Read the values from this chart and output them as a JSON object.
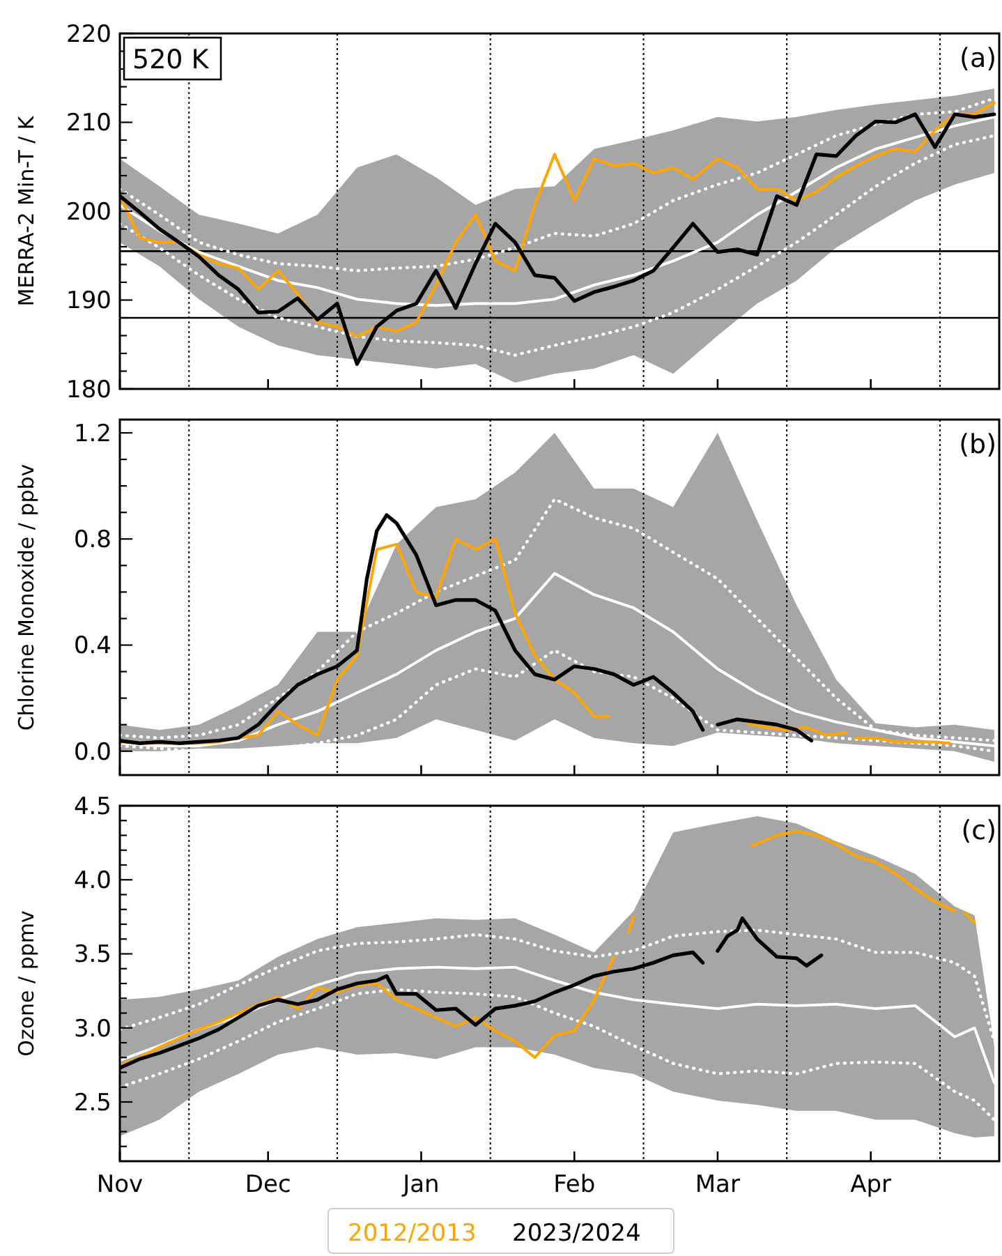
{
  "chart_data": [
    {
      "type": "line",
      "ylabel": "MERRA-2 Min-T / K",
      "annotations": [
        "520 K",
        "(a)"
      ],
      "tick_labels": "y",
      "x": [
        "2023-11-01",
        "2023-11-05",
        "2023-11-09",
        "2023-11-13",
        "2023-11-17",
        "2023-11-21",
        "2023-11-25",
        "2023-11-29",
        "2023-12-03",
        "2023-12-07",
        "2023-12-11",
        "2023-12-15",
        "2023-12-19",
        "2023-12-23",
        "2023-12-27",
        "2023-12-31",
        "2024-01-04",
        "2024-01-08",
        "2024-01-12",
        "2024-01-16",
        "2024-01-20",
        "2024-01-24",
        "2024-01-28",
        "2024-02-01",
        "2024-02-05",
        "2024-02-09",
        "2024-02-13",
        "2024-02-17",
        "2024-02-21",
        "2024-02-25",
        "2024-03-01",
        "2024-03-05",
        "2024-03-09",
        "2024-03-13",
        "2024-03-17",
        "2024-03-21",
        "2024-03-25",
        "2024-03-29",
        "2024-04-02",
        "2024-04-06",
        "2024-04-10",
        "2024-04-14",
        "2024-04-18",
        "2024-04-22",
        "2024-04-26"
      ],
      "xlim": [
        "2023-11-01",
        "2024-04-27"
      ],
      "xticks": [
        {
          "value": "2023-11-01",
          "label": null
        },
        {
          "value": "2023-12-01",
          "label": null
        },
        {
          "value": "2024-01-01",
          "label": null
        },
        {
          "value": "2024-02-01",
          "label": null
        },
        {
          "value": "2024-03-01",
          "label": null
        },
        {
          "value": "2024-04-01",
          "label": null
        }
      ],
      "ylim": [
        180,
        220
      ],
      "yticks": [
        180,
        {
          "value": 182,
          "label": null
        },
        {
          "value": 184,
          "label": null
        },
        {
          "value": 186,
          "label": null
        },
        {
          "value": 188,
          "label": null
        },
        190,
        {
          "value": 192,
          "label": null
        },
        {
          "value": 194,
          "label": null
        },
        {
          "value": 196,
          "label": null
        },
        {
          "value": 198,
          "label": null
        },
        200,
        {
          "value": 202,
          "label": null
        },
        {
          "value": 204,
          "label": null
        },
        {
          "value": 206,
          "label": null
        },
        {
          "value": 208,
          "label": null
        },
        210,
        {
          "value": 212,
          "label": null
        },
        {
          "value": 214,
          "label": null
        },
        {
          "value": 216,
          "label": null
        },
        {
          "value": 218,
          "label": null
        },
        220
      ],
      "ref_lines": [
        {
          "axis": "x",
          "value": "2023-11-15",
          "color": "#000000",
          "line_style": "dotted"
        },
        {
          "axis": "x",
          "value": "2023-12-15",
          "color": "#000000",
          "line_style": "dotted"
        },
        {
          "axis": "x",
          "value": "2024-01-15",
          "color": "#000000",
          "line_style": "dotted"
        },
        {
          "axis": "x",
          "value": "2024-02-15",
          "color": "#000000",
          "line_style": "dotted"
        },
        {
          "axis": "x",
          "value": "2024-03-15",
          "color": "#000000",
          "line_style": "dotted"
        },
        {
          "axis": "x",
          "value": "2024-04-15",
          "color": "#000000",
          "line_style": "dotted"
        },
        {
          "axis": "y",
          "value": 195.5,
          "color": "#000000",
          "line_style": "solid"
        },
        {
          "axis": "y",
          "value": 188,
          "color": "#000000",
          "line_style": "solid"
        }
      ],
      "series": [
        {
          "color": "#ffffff",
          "line_style": "solid",
          "x": [
            "2023-11-01",
            "2023-11-09",
            "2023-11-17",
            "2023-11-25",
            "2023-12-03",
            "2023-12-11",
            "2023-12-19",
            "2023-12-27",
            "2024-01-04",
            "2024-01-12",
            "2024-01-20",
            "2024-01-28",
            "2024-02-05",
            "2024-02-13",
            "2024-02-21",
            "2024-03-01",
            "2024-03-09",
            "2024-03-17",
            "2024-03-25",
            "2024-04-02",
            "2024-04-10",
            "2024-04-18",
            "2024-04-26"
          ],
          "values": [
            200.7,
            197.8,
            195.4,
            193.8,
            192.2,
            191.4,
            190.1,
            189.6,
            189.4,
            189.6,
            189.6,
            190.1,
            191.7,
            192.8,
            194.4,
            196.5,
            199.6,
            202.2,
            204.9,
            207,
            208.3,
            209.6,
            210.6
          ],
          "lower": [
            196.5,
            193.8,
            190.1,
            187,
            184.9,
            183.8,
            183.3,
            182.8,
            182.3,
            182.8,
            180.7,
            181.7,
            182.3,
            183.8,
            181.7,
            186,
            189.6,
            192.2,
            195.9,
            198.6,
            201.2,
            203,
            204.3
          ],
          "upper": [
            205.9,
            202.8,
            199.6,
            198.6,
            197.5,
            199.6,
            204.9,
            206.4,
            203.8,
            200.7,
            202.5,
            202.8,
            207,
            208,
            209.1,
            210.6,
            210.1,
            210.6,
            211.4,
            212,
            212.5,
            213,
            213.8
          ]
        },
        {
          "color": "#ffffff",
          "line_style": "dotted",
          "x": [
            "2023-11-01",
            "2023-11-09",
            "2023-11-17",
            "2023-11-25",
            "2023-12-03",
            "2023-12-11",
            "2023-12-19",
            "2023-12-27",
            "2024-01-04",
            "2024-01-12",
            "2024-01-20",
            "2024-01-28",
            "2024-02-05",
            "2024-02-13",
            "2024-02-21",
            "2024-03-01",
            "2024-03-09",
            "2024-03-17",
            "2024-03-25",
            "2024-04-02",
            "2024-04-10",
            "2024-04-18",
            "2024-04-26"
          ],
          "values": [
            202.5,
            199.6,
            196.5,
            195.1,
            194.1,
            193.8,
            193.3,
            193.6,
            193.8,
            194.6,
            195.9,
            197.5,
            197.2,
            198.6,
            201.2,
            203,
            204.3,
            206.4,
            208.5,
            209.8,
            210.9,
            211.2,
            212.7
          ]
        },
        {
          "color": "#ffffff",
          "line_style": "dotted",
          "x": [
            "2023-11-01",
            "2023-11-09",
            "2023-11-17",
            "2023-11-25",
            "2023-12-03",
            "2023-12-11",
            "2023-12-19",
            "2023-12-27",
            "2024-01-04",
            "2024-01-12",
            "2024-01-20",
            "2024-01-28",
            "2024-02-05",
            "2024-02-13",
            "2024-02-21",
            "2024-03-01",
            "2024-03-09",
            "2024-03-17",
            "2024-03-25",
            "2024-04-02",
            "2024-04-10",
            "2024-04-18",
            "2024-04-26"
          ],
          "values": [
            198.6,
            195.9,
            192.8,
            190.1,
            188,
            187,
            185.9,
            185.4,
            185.2,
            184.9,
            183.8,
            184.9,
            185.9,
            187,
            188.6,
            191.2,
            193.8,
            196.5,
            199.6,
            202.8,
            205.4,
            207.5,
            208.5
          ]
        },
        {
          "color": "#ffa500",
          "line_style": "solid",
          "values": [
            201.7,
            197,
            196.5,
            196.5,
            195.1,
            194.1,
            193.6,
            191.2,
            193.3,
            190.7,
            187.5,
            187,
            185.9,
            187,
            186.5,
            187.5,
            191.7,
            196.5,
            199.6,
            194.4,
            193.3,
            200.7,
            206.4,
            201.2,
            205.9,
            205.1,
            205.4,
            204.3,
            204.9,
            203.6,
            205.9,
            204.9,
            202.5,
            202.5,
            201.2,
            202.2,
            203.8,
            205.1,
            206.2,
            207,
            206.7,
            209.1,
            210.9,
            210.9,
            212.2
          ]
        },
        {
          "color": "#000000",
          "line_style": "solid",
          "values": [
            201.7,
            199.9,
            198,
            196.5,
            194.9,
            192.8,
            191.2,
            188.6,
            188.7,
            190.2,
            187.8,
            189.6,
            182.8,
            187,
            188.8,
            189.6,
            193.3,
            189.1,
            194.1,
            198.6,
            196.5,
            192.8,
            192.5,
            189.9,
            190.9,
            191.5,
            192.2,
            193.3,
            195.9,
            198.6,
            195.4,
            195.7,
            195.1,
            201.7,
            200.7,
            206.4,
            206.2,
            208.5,
            210.1,
            210,
            210.9,
            207.2,
            210.9,
            210.6,
            210.9
          ]
        }
      ]
    },
    {
      "type": "line",
      "ylabel": "Chlorine Monoxide / ppbv",
      "annotations": [
        "(b)"
      ],
      "tick_labels": "y",
      "xlim": [
        "2023-11-01",
        "2024-04-27"
      ],
      "xticks": [
        {
          "value": "2023-11-01",
          "label": null
        },
        {
          "value": "2023-12-01",
          "label": null
        },
        {
          "value": "2024-01-01",
          "label": null
        },
        {
          "value": "2024-02-01",
          "label": null
        },
        {
          "value": "2024-03-01",
          "label": null
        },
        {
          "value": "2024-04-01",
          "label": null
        }
      ],
      "ylim": [
        -0.09,
        1.25
      ],
      "yticks": [
        {
          "value": 0,
          "label": "0.0"
        },
        {
          "value": 0.1,
          "label": null
        },
        {
          "value": 0.2,
          "label": null
        },
        {
          "value": 0.3,
          "label": null
        },
        0.4,
        {
          "value": 0.5,
          "label": null
        },
        {
          "value": 0.6,
          "label": null
        },
        {
          "value": 0.7,
          "label": null
        },
        0.8,
        {
          "value": 0.9,
          "label": null
        },
        {
          "value": 1.0,
          "label": null
        },
        {
          "value": 1.1,
          "label": null
        },
        1.2
      ],
      "ref_lines": [
        {
          "axis": "x",
          "value": "2023-11-15",
          "color": "#000000",
          "line_style": "dotted"
        },
        {
          "axis": "x",
          "value": "2023-12-15",
          "color": "#000000",
          "line_style": "dotted"
        },
        {
          "axis": "x",
          "value": "2024-01-15",
          "color": "#000000",
          "line_style": "dotted"
        },
        {
          "axis": "x",
          "value": "2024-02-15",
          "color": "#000000",
          "line_style": "dotted"
        },
        {
          "axis": "x",
          "value": "2024-03-15",
          "color": "#000000",
          "line_style": "dotted"
        },
        {
          "axis": "x",
          "value": "2024-04-15",
          "color": "#000000",
          "line_style": "dotted"
        }
      ],
      "series": [
        {
          "color": "#ffffff",
          "line_style": "solid",
          "x": [
            "2023-11-01",
            "2023-11-09",
            "2023-11-17",
            "2023-11-25",
            "2023-12-03",
            "2023-12-11",
            "2023-12-19",
            "2023-12-27",
            "2024-01-04",
            "2024-01-12",
            "2024-01-20",
            "2024-01-28",
            "2024-02-05",
            "2024-02-13",
            "2024-02-21",
            "2024-03-01",
            "2024-03-09",
            "2024-03-17",
            "2024-03-25",
            "2024-04-02",
            "2024-04-10",
            "2024-04-18",
            "2024-04-26"
          ],
          "values": [
            0.03,
            0.02,
            0.02,
            0.04,
            0.1,
            0.15,
            0.22,
            0.29,
            0.38,
            0.45,
            0.5,
            0.67,
            0.59,
            0.54,
            0.45,
            0.31,
            0.22,
            0.15,
            0.11,
            0.08,
            0.05,
            0.035,
            0.02
          ],
          "lower": [
            0,
            0,
            0.01,
            0.01,
            0.02,
            0.03,
            0.03,
            0.05,
            0.12,
            0.08,
            0.04,
            0.12,
            0.05,
            0.03,
            0.02,
            0.07,
            0.06,
            0.05,
            0.03,
            0.02,
            0.01,
            0,
            -0.04
          ],
          "upper": [
            0.1,
            0.08,
            0.1,
            0.17,
            0.25,
            0.45,
            0.45,
            0.78,
            0.92,
            0.95,
            1.05,
            1.2,
            0.99,
            0.99,
            0.92,
            1.2,
            0.87,
            0.55,
            0.27,
            0.105,
            0.09,
            0.1,
            0.08
          ]
        },
        {
          "color": "#ffffff",
          "line_style": "dotted",
          "x": [
            "2023-11-01",
            "2023-11-09",
            "2023-11-17",
            "2023-11-25",
            "2023-12-03",
            "2023-12-11",
            "2023-12-19",
            "2023-12-27",
            "2024-01-04",
            "2024-01-12",
            "2024-01-20",
            "2024-01-28",
            "2024-02-05",
            "2024-02-13",
            "2024-02-21",
            "2024-03-01",
            "2024-03-09",
            "2024-03-17",
            "2024-03-25",
            "2024-04-02",
            "2024-04-10",
            "2024-04-18",
            "2024-04-26"
          ],
          "values": [
            0.06,
            0.05,
            0.06,
            0.1,
            0.2,
            0.3,
            0.45,
            0.52,
            0.6,
            0.66,
            0.72,
            0.95,
            0.88,
            0.84,
            0.75,
            0.65,
            0.5,
            0.35,
            0.2,
            0.08,
            0.06,
            0.05,
            0.04
          ]
        },
        {
          "color": "#ffffff",
          "line_style": "dotted",
          "x": [
            "2023-11-01",
            "2023-11-09",
            "2023-11-17",
            "2023-11-25",
            "2023-12-03",
            "2023-12-11",
            "2023-12-19",
            "2023-12-27",
            "2024-01-04",
            "2024-01-12",
            "2024-01-20",
            "2024-01-28",
            "2024-02-05",
            "2024-02-13",
            "2024-02-21",
            "2024-03-01",
            "2024-03-09",
            "2024-03-17",
            "2024-03-25",
            "2024-04-02",
            "2024-04-10",
            "2024-04-18",
            "2024-04-26"
          ],
          "values": [
            0.02,
            0.01,
            0,
            0,
            0.01,
            0.03,
            0.06,
            0.12,
            0.25,
            0.31,
            0.28,
            0.38,
            0.3,
            0.28,
            0.2,
            0.08,
            0.07,
            0.06,
            0.05,
            0.04,
            0.03,
            0.02,
            0
          ]
        },
        {
          "color": "#ffa500",
          "line_style": "solid",
          "x": [
            "2023-11-01",
            "2023-11-05",
            "2023-11-09",
            "2023-11-13",
            "2023-11-17",
            "2023-11-21",
            "2023-11-25",
            "2023-11-29",
            "2023-12-03",
            "2023-12-07",
            "2023-12-11",
            "2023-12-15",
            "2023-12-19",
            "2023-12-23",
            "2023-12-27",
            "2023-12-31",
            "2024-01-04",
            "2024-01-08",
            "2024-01-12",
            "2024-01-16",
            "2024-01-20",
            "2024-01-24",
            "2024-01-28",
            "2024-02-01",
            "2024-02-05",
            "2024-02-08",
            "2024-02-19",
            "2024-03-07",
            "2024-03-11",
            "2024-03-15",
            "2024-03-19",
            "2024-03-23",
            "2024-03-27",
            "2024-03-28",
            "2024-03-29",
            "2024-04-02",
            "2024-04-06",
            "2024-04-10",
            "2024-04-14",
            "2024-04-17"
          ],
          "values": [
            0.035,
            0.03,
            0.03,
            0.03,
            0.03,
            0.035,
            0.05,
            0.06,
            0.15,
            0.1,
            0.06,
            0.27,
            0.36,
            0.76,
            0.78,
            0.6,
            0.58,
            0.8,
            0.76,
            0.8,
            0.52,
            0.36,
            0.27,
            0.22,
            0.13,
            0.13,
            null,
            0.105,
            0.09,
            0.08,
            0.09,
            0.06,
            0.07,
            null,
            0.05,
            0.05,
            0.035,
            0.035,
            0.035,
            0.03
          ]
        },
        {
          "color": "#000000",
          "line_style": "solid",
          "x": [
            "2023-11-01",
            "2023-11-05",
            "2023-11-09",
            "2023-11-13",
            "2023-11-17",
            "2023-11-21",
            "2023-11-25",
            "2023-11-29",
            "2023-12-03",
            "2023-12-07",
            "2023-12-11",
            "2023-12-15",
            "2023-12-19",
            "2023-12-21",
            "2023-12-23",
            "2023-12-25",
            "2023-12-27",
            "2023-12-31",
            "2024-01-04",
            "2024-01-08",
            "2024-01-12",
            "2024-01-16",
            "2024-01-20",
            "2024-01-24",
            "2024-01-28",
            "2024-02-01",
            "2024-02-05",
            "2024-02-09",
            "2024-02-13",
            "2024-02-17",
            "2024-02-21",
            "2024-02-25",
            "2024-02-27",
            "2024-02-28",
            "2024-03-01",
            "2024-03-05",
            "2024-03-09",
            "2024-03-13",
            "2024-03-17",
            "2024-03-20"
          ],
          "values": [
            0.04,
            0.03,
            0.035,
            0.03,
            0.035,
            0.04,
            0.05,
            0.1,
            0.18,
            0.25,
            0.29,
            0.32,
            0.38,
            0.65,
            0.83,
            0.89,
            0.86,
            0.74,
            0.55,
            0.57,
            0.57,
            0.53,
            0.38,
            0.29,
            0.27,
            0.32,
            0.31,
            0.29,
            0.25,
            0.28,
            0.22,
            0.15,
            0.08,
            null,
            0.1,
            0.12,
            0.11,
            0.1,
            0.08,
            0.04
          ]
        }
      ]
    },
    {
      "type": "line",
      "ylabel": "Ozone / ppmv",
      "annotations": [
        "(c)"
      ],
      "legend": "bottom",
      "xlim": [
        "2023-11-01",
        "2024-04-27"
      ],
      "xticks": [
        {
          "value": "2023-11-01",
          "label": "Nov"
        },
        {
          "value": "2023-12-01",
          "label": "Dec"
        },
        {
          "value": "2024-01-01",
          "label": "Jan"
        },
        {
          "value": "2024-02-01",
          "label": "Feb"
        },
        {
          "value": "2024-03-01",
          "label": "Mar"
        },
        {
          "value": "2024-04-01",
          "label": "Apr"
        }
      ],
      "ylim": [
        2.1,
        4.5
      ],
      "yticks": [
        {
          "value": 2.2,
          "label": null
        },
        {
          "value": 2.3,
          "label": null
        },
        {
          "value": 2.4,
          "label": null
        },
        2.5,
        {
          "value": 2.6,
          "label": null
        },
        {
          "value": 2.7,
          "label": null
        },
        {
          "value": 2.8,
          "label": null
        },
        {
          "value": 2.9,
          "label": null
        },
        {
          "value": 3,
          "label": "3.0"
        },
        {
          "value": 3.1,
          "label": null
        },
        {
          "value": 3.2,
          "label": null
        },
        {
          "value": 3.3,
          "label": null
        },
        {
          "value": 3.4,
          "label": null
        },
        3.5,
        {
          "value": 3.6,
          "label": null
        },
        {
          "value": 3.7,
          "label": null
        },
        {
          "value": 3.8,
          "label": null
        },
        {
          "value": 3.9,
          "label": null
        },
        {
          "value": 4,
          "label": "4.0"
        },
        {
          "value": 4.1,
          "label": null
        },
        {
          "value": 4.2,
          "label": null
        },
        {
          "value": 4.3,
          "label": null
        },
        {
          "value": 4.4,
          "label": null
        },
        4.5
      ],
      "ref_lines": [
        {
          "axis": "x",
          "value": "2023-11-15",
          "color": "#000000",
          "line_style": "dotted"
        },
        {
          "axis": "x",
          "value": "2023-12-15",
          "color": "#000000",
          "line_style": "dotted"
        },
        {
          "axis": "x",
          "value": "2024-01-15",
          "color": "#000000",
          "line_style": "dotted"
        },
        {
          "axis": "x",
          "value": "2024-02-15",
          "color": "#000000",
          "line_style": "dotted"
        },
        {
          "axis": "x",
          "value": "2024-03-15",
          "color": "#000000",
          "line_style": "dotted"
        },
        {
          "axis": "x",
          "value": "2024-04-15",
          "color": "#000000",
          "line_style": "dotted"
        }
      ],
      "series": [
        {
          "color": "#ffffff",
          "line_style": "solid",
          "x": [
            "2023-11-01",
            "2023-11-09",
            "2023-11-17",
            "2023-11-25",
            "2023-12-03",
            "2023-12-11",
            "2023-12-19",
            "2023-12-27",
            "2024-01-04",
            "2024-01-12",
            "2024-01-20",
            "2024-01-28",
            "2024-02-05",
            "2024-02-13",
            "2024-02-21",
            "2024-03-01",
            "2024-03-09",
            "2024-03-17",
            "2024-03-25",
            "2024-04-02",
            "2024-04-10",
            "2024-04-18",
            "2024-04-22",
            "2024-04-26"
          ],
          "values": [
            2.78,
            2.88,
            2.99,
            3.08,
            3.19,
            3.29,
            3.37,
            3.4,
            3.41,
            3.4,
            3.41,
            3.32,
            3.24,
            3.19,
            3.16,
            3.13,
            3.16,
            3.15,
            3.16,
            3.13,
            3.15,
            2.94,
            3.0,
            2.63
          ],
          "lower": [
            2.27,
            2.38,
            2.57,
            2.69,
            2.82,
            2.87,
            2.82,
            2.83,
            2.79,
            2.87,
            2.87,
            2.82,
            2.73,
            2.69,
            2.57,
            2.51,
            2.48,
            2.44,
            2.44,
            2.38,
            2.38,
            2.29,
            2.26,
            2.27
          ],
          "upper": [
            3.19,
            3.21,
            3.26,
            3.32,
            3.48,
            3.6,
            3.68,
            3.71,
            3.74,
            3.73,
            3.74,
            3.63,
            3.51,
            3.79,
            4.32,
            4.38,
            4.43,
            4.38,
            4.26,
            4.16,
            4.04,
            3.82,
            3.76,
            2.88
          ]
        },
        {
          "color": "#ffffff",
          "line_style": "dotted",
          "x": [
            "2023-11-01",
            "2023-11-09",
            "2023-11-17",
            "2023-11-25",
            "2023-12-03",
            "2023-12-11",
            "2023-12-19",
            "2023-12-27",
            "2024-01-04",
            "2024-01-12",
            "2024-01-20",
            "2024-01-28",
            "2024-02-05",
            "2024-02-13",
            "2024-02-21",
            "2024-03-01",
            "2024-03-09",
            "2024-03-17",
            "2024-03-25",
            "2024-04-02",
            "2024-04-10",
            "2024-04-18",
            "2024-04-22",
            "2024-04-26"
          ],
          "values": [
            2.99,
            3.07,
            3.16,
            3.29,
            3.41,
            3.52,
            3.57,
            3.58,
            3.6,
            3.63,
            3.6,
            3.52,
            3.48,
            3.52,
            3.62,
            3.65,
            3.66,
            3.63,
            3.6,
            3.51,
            3.51,
            3.44,
            3.35,
            2.91
          ]
        },
        {
          "color": "#ffffff",
          "line_style": "dotted",
          "x": [
            "2023-11-01",
            "2023-11-09",
            "2023-11-17",
            "2023-11-25",
            "2023-12-03",
            "2023-12-11",
            "2023-12-19",
            "2023-12-27",
            "2024-01-04",
            "2024-01-12",
            "2024-01-20",
            "2024-01-28",
            "2024-02-05",
            "2024-02-13",
            "2024-02-21",
            "2024-03-01",
            "2024-03-09",
            "2024-03-17",
            "2024-03-25",
            "2024-04-02",
            "2024-04-10",
            "2024-04-18",
            "2024-04-22",
            "2024-04-26"
          ],
          "values": [
            2.6,
            2.69,
            2.79,
            2.91,
            3.04,
            3.13,
            3.23,
            3.26,
            3.24,
            3.23,
            3.21,
            3.1,
            3.01,
            2.88,
            2.76,
            2.69,
            2.71,
            2.69,
            2.76,
            2.77,
            2.76,
            2.57,
            2.51,
            2.38
          ]
        },
        {
          "name": "2012/2013",
          "color": "#ffa500",
          "line_style": "solid",
          "x": [
            "2023-11-01",
            "2023-11-05",
            "2023-11-09",
            "2023-11-13",
            "2023-11-17",
            "2023-11-21",
            "2023-11-25",
            "2023-11-29",
            "2023-12-03",
            "2023-12-07",
            "2023-12-11",
            "2023-12-15",
            "2023-12-19",
            "2023-12-23",
            "2023-12-27",
            "2023-12-31",
            "2024-01-04",
            "2024-01-08",
            "2024-01-12",
            "2024-01-16",
            "2024-01-20",
            "2024-01-24",
            "2024-01-28",
            "2024-02-01",
            "2024-02-05",
            "2024-02-09",
            "2024-02-10",
            "2024-02-12",
            "2024-02-13",
            "2024-02-14",
            "2024-03-08",
            "2024-03-13",
            "2024-03-17",
            "2024-03-21",
            "2024-03-25",
            "2024-03-29",
            "2024-04-02",
            "2024-04-06",
            "2024-04-10",
            "2024-04-14",
            "2024-04-18",
            "2024-04-19",
            "2024-04-20",
            "2024-04-22"
          ],
          "values": [
            2.75,
            2.8,
            2.87,
            2.93,
            2.99,
            3.04,
            3.1,
            3.16,
            3.21,
            3.13,
            3.27,
            3.24,
            3.29,
            3.3,
            3.19,
            3.13,
            3.07,
            3.01,
            3.07,
            2.98,
            2.91,
            2.8,
            2.95,
            2.98,
            3.19,
            3.48,
            null,
            3.65,
            3.75,
            null,
            4.23,
            4.3,
            4.33,
            4.3,
            4.24,
            4.16,
            4.12,
            4.04,
            3.94,
            3.85,
            3.79,
            null,
            3.78,
            3.71
          ]
        },
        {
          "name": "2023/2024",
          "color": "#000000",
          "line_style": "solid",
          "x": [
            "2023-11-01",
            "2023-11-05",
            "2023-11-09",
            "2023-11-13",
            "2023-11-17",
            "2023-11-21",
            "2023-11-25",
            "2023-11-29",
            "2023-12-03",
            "2023-12-07",
            "2023-12-11",
            "2023-12-15",
            "2023-12-19",
            "2023-12-23",
            "2023-12-25",
            "2023-12-27",
            "2023-12-31",
            "2024-01-04",
            "2024-01-08",
            "2024-01-12",
            "2024-01-16",
            "2024-01-20",
            "2024-01-24",
            "2024-01-28",
            "2024-02-01",
            "2024-02-05",
            "2024-02-09",
            "2024-02-13",
            "2024-02-17",
            "2024-02-21",
            "2024-02-25",
            "2024-02-27",
            "2024-02-28",
            "2024-03-01",
            "2024-03-03",
            "2024-03-05",
            "2024-03-06",
            "2024-03-09",
            "2024-03-13",
            "2024-03-17",
            "2024-03-19",
            "2024-03-22"
          ],
          "values": [
            2.73,
            2.79,
            2.83,
            2.88,
            2.93,
            2.99,
            3.07,
            3.15,
            3.19,
            3.16,
            3.19,
            3.26,
            3.3,
            3.32,
            3.35,
            3.23,
            3.23,
            3.12,
            3.13,
            3.02,
            3.13,
            3.15,
            3.18,
            3.24,
            3.29,
            3.35,
            3.38,
            3.4,
            3.44,
            3.49,
            3.51,
            3.44,
            null,
            3.52,
            3.62,
            3.66,
            3.74,
            3.6,
            3.48,
            3.47,
            3.42,
            3.49
          ]
        }
      ]
    }
  ]
}
